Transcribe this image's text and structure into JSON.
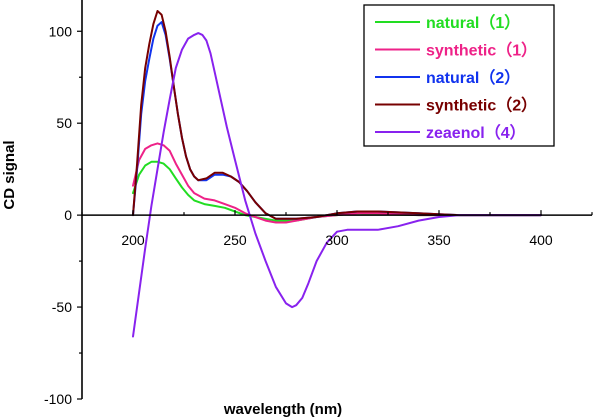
{
  "chart_data": {
    "type": "line",
    "xlabel": "wavelength (nm)",
    "ylabel": "CD signal",
    "xlim": [
      175,
      425
    ],
    "ylim": [
      -100,
      117
    ],
    "xticks": [
      200,
      250,
      300,
      350,
      400
    ],
    "yticks": [
      -100,
      -50,
      0,
      50,
      100
    ],
    "grid": false,
    "legend_position": "top-right",
    "series": [
      {
        "name": "natural（1）",
        "color": "#22dd22",
        "x": [
          200,
          203,
          206,
          209,
          212,
          215,
          218,
          221,
          224,
          227,
          230,
          235,
          240,
          245,
          250,
          255,
          260,
          265,
          270,
          275,
          280,
          290,
          300,
          310,
          320,
          330,
          340,
          350,
          360,
          380,
          400
        ],
        "y": [
          12,
          22,
          27,
          29,
          29,
          28,
          25,
          20,
          15,
          11,
          8,
          6,
          5,
          4,
          2,
          0,
          -1,
          -2,
          -3,
          -3,
          -3,
          -1,
          0,
          1,
          0.5,
          0.3,
          0,
          0,
          0,
          0,
          0
        ]
      },
      {
        "name": "synthetic（1）",
        "color": "#ee2288",
        "x": [
          200,
          203,
          206,
          209,
          212,
          215,
          218,
          221,
          224,
          227,
          230,
          235,
          240,
          245,
          250,
          255,
          260,
          265,
          270,
          275,
          280,
          290,
          300,
          310,
          320,
          330,
          340,
          350,
          360,
          380,
          400
        ],
        "y": [
          16,
          30,
          36,
          38,
          39,
          38,
          35,
          28,
          22,
          16,
          12,
          9,
          8,
          6,
          4,
          1,
          -1,
          -3,
          -4,
          -4,
          -3,
          -1,
          0,
          1,
          1,
          0.5,
          0,
          0,
          0,
          0,
          0
        ]
      },
      {
        "name": "natural（2）",
        "color": "#1133ee",
        "x": [
          200,
          202,
          204,
          206,
          208,
          210,
          212,
          214,
          216,
          218,
          220,
          222,
          224,
          226,
          228,
          230,
          232,
          236,
          240,
          244,
          248,
          252,
          256,
          260,
          265,
          270,
          280,
          290,
          300,
          310,
          320,
          330,
          340,
          350,
          360,
          380,
          400
        ],
        "y": [
          0,
          25,
          55,
          73,
          85,
          96,
          103,
          105,
          98,
          85,
          70,
          55,
          42,
          32,
          25,
          21,
          19,
          19,
          22,
          22,
          21,
          18,
          13,
          7,
          1,
          -2,
          -2,
          -1,
          1,
          2,
          2,
          1.5,
          1,
          0.5,
          0,
          0,
          0
        ]
      },
      {
        "name": "synthetic（2）",
        "color": "#770000",
        "x": [
          200,
          202,
          204,
          206,
          208,
          210,
          212,
          214,
          216,
          218,
          220,
          222,
          224,
          226,
          228,
          230,
          232,
          236,
          240,
          244,
          248,
          252,
          256,
          260,
          265,
          270,
          280,
          290,
          300,
          310,
          320,
          330,
          340,
          350,
          360,
          380,
          400
        ],
        "y": [
          0,
          28,
          60,
          80,
          93,
          104,
          111,
          109,
          100,
          86,
          70,
          55,
          42,
          32,
          25,
          21,
          19,
          20,
          23,
          23,
          21,
          18,
          13,
          7,
          1,
          -2,
          -2,
          -1,
          1,
          2,
          2,
          1.5,
          1,
          0.5,
          0,
          0,
          0
        ]
      },
      {
        "name": "zeaenol（4）",
        "color": "#8822ee",
        "x": [
          200,
          203,
          206,
          209,
          212,
          215,
          218,
          221,
          224,
          227,
          230,
          232,
          234,
          236,
          238,
          240,
          243,
          246,
          250,
          255,
          260,
          265,
          270,
          275,
          278,
          280,
          283,
          286,
          290,
          295,
          300,
          305,
          310,
          320,
          330,
          340,
          350,
          360,
          380,
          400
        ],
        "y": [
          -66,
          -42,
          -18,
          5,
          25,
          45,
          63,
          80,
          90,
          96,
          98,
          99,
          98,
          95,
          88,
          78,
          63,
          48,
          30,
          8,
          -10,
          -25,
          -39,
          -48,
          -50,
          -49,
          -45,
          -37,
          -25,
          -15,
          -9,
          -8,
          -8,
          -8,
          -6,
          -3,
          -1,
          0,
          0,
          0
        ]
      }
    ]
  }
}
